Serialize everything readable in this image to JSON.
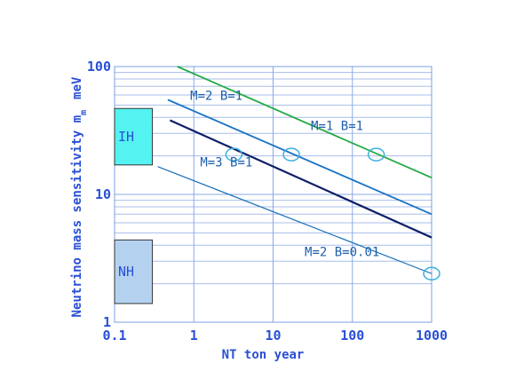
{
  "chart_data": {
    "type": "line",
    "title": "",
    "xlabel": "NT ton year",
    "ylabel_main": "Neutrino mass sensitivity m",
    "ylabel_subscript": "m",
    "ylabel_unit": "meV",
    "x_scale": "log",
    "y_scale": "log",
    "xlim": [
      0.1,
      1000
    ],
    "ylim": [
      1,
      100
    ],
    "x_tick_labels": [
      "0.1",
      "1",
      "10",
      "100",
      "1000"
    ],
    "y_tick_labels": [
      "1",
      "10",
      "100"
    ],
    "grid": true,
    "series": [
      {
        "name": "M=1 B=1",
        "color": "#22aa44",
        "x": [
          0.62,
          1000
        ],
        "y": [
          100,
          13.5
        ]
      },
      {
        "name": "M=2 B=1",
        "color": "#1a73c4",
        "x": [
          0.47,
          1000
        ],
        "y": [
          55,
          7.0
        ]
      },
      {
        "name": "M=3 B=1",
        "color": "#0d1f66",
        "x": [
          0.5,
          1000
        ],
        "y": [
          38,
          4.6
        ]
      },
      {
        "name": "M=2 B=0.01",
        "color": "#1a6fb8",
        "x": [
          0.35,
          1000
        ],
        "y": [
          16.5,
          2.4
        ]
      }
    ],
    "markers": [
      {
        "x": 3.2,
        "y": 20.5
      },
      {
        "x": 17,
        "y": 20.5
      },
      {
        "x": 200,
        "y": 20.5
      },
      {
        "x": 1000,
        "y": 2.4
      }
    ],
    "regions": [
      {
        "label": "IH",
        "x": [
          0.1,
          0.3
        ],
        "y": [
          17,
          47
        ],
        "fill": "#55f2f2"
      },
      {
        "label": "NH",
        "x": [
          0.1,
          0.3
        ],
        "y": [
          1.4,
          4.4
        ],
        "fill": "#b4d2f0"
      }
    ],
    "annotations": [
      {
        "text": "M=2 B=1",
        "x": 0.9,
        "y": 55,
        "color": "#1a5fa8"
      },
      {
        "text": "M=1 B=1",
        "x": 30,
        "y": 32,
        "color": "#1a5fa8"
      },
      {
        "text": "M=3 B=1",
        "x": 1.2,
        "y": 16.5,
        "color": "#1a5fa8"
      },
      {
        "text": "M=2 B=0.01",
        "x": 25,
        "y": 3.3,
        "color": "#1a5fa8"
      }
    ]
  }
}
